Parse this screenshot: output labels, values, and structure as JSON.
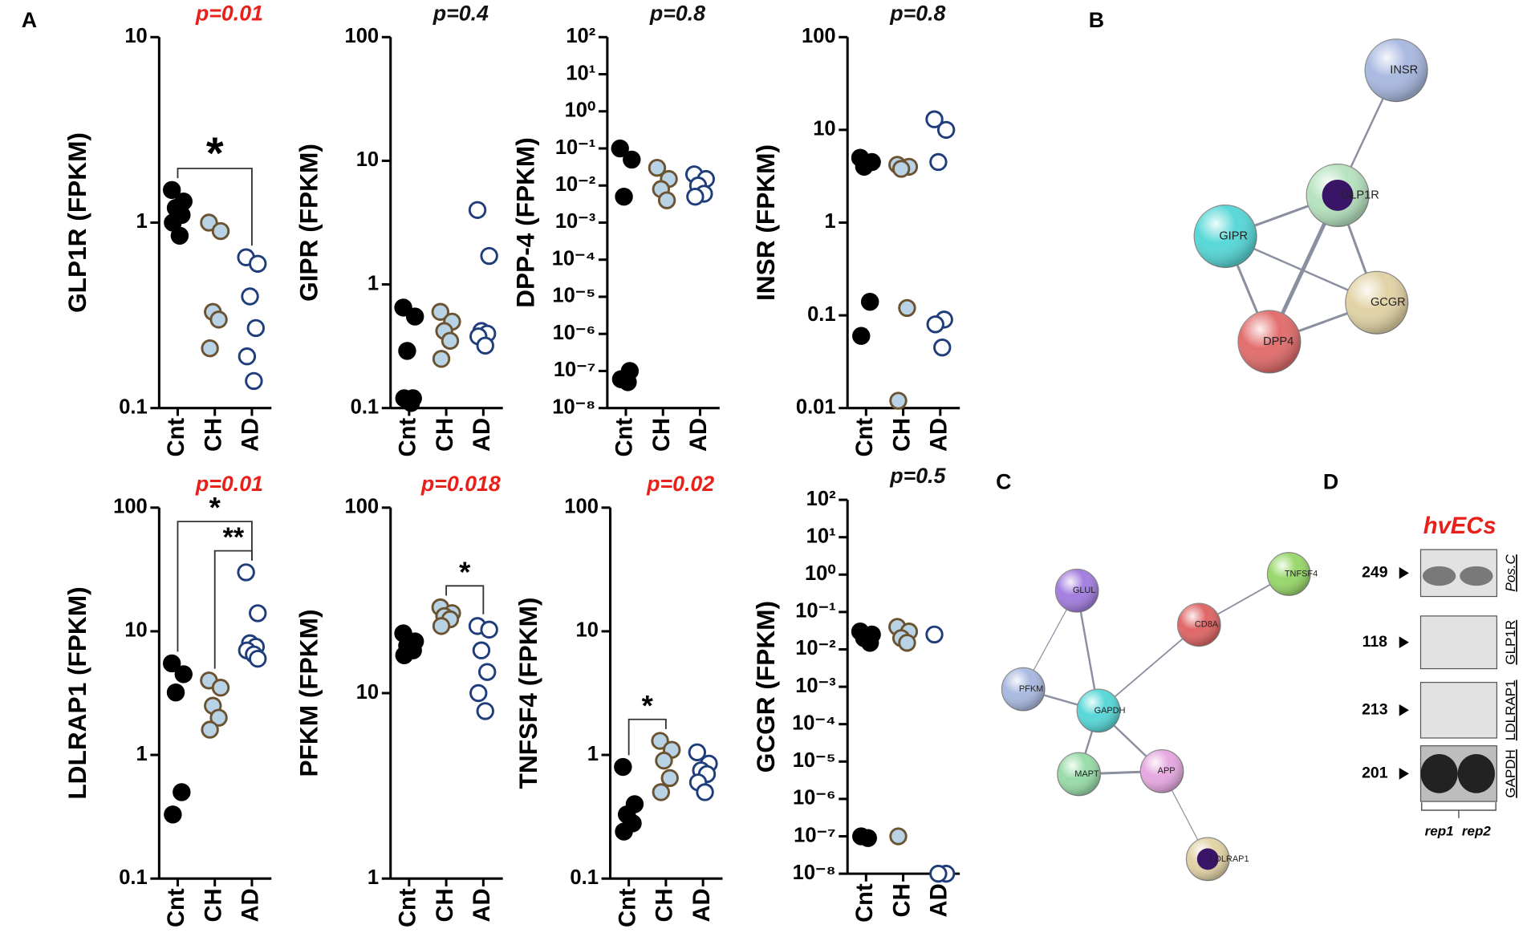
{
  "panel_letters": [
    "A",
    "B",
    "C",
    "D"
  ],
  "chart_data": [
    {
      "type": "scatter",
      "ylabel": "GLP1R (FPKM)",
      "annotation": "p=0.01",
      "annotation_color": "#e8201a",
      "categories": [
        "Cnt",
        "CH",
        "AD"
      ],
      "log_scale": true,
      "ylim": [
        0.1,
        10
      ],
      "yticks": [
        0.1,
        1,
        10
      ],
      "values": [
        [
          1.5,
          1.3,
          1.2,
          1.1,
          1.0,
          0.85
        ],
        [
          1.0,
          0.9,
          0.33,
          0.3,
          0.21
        ],
        [
          0.65,
          0.6,
          0.4,
          0.27,
          0.19,
          0.14
        ]
      ],
      "marker_fill": [
        "#000000",
        "#b9d3e6",
        "#ffffff"
      ],
      "marker_edge": [
        "#000000",
        "#6b5332",
        "#1f3d7a"
      ],
      "brackets": [
        {
          "label": "*",
          "from": 0,
          "to": 2
        }
      ]
    },
    {
      "type": "scatter",
      "ylabel": "GIPR (FPKM)",
      "annotation": "p=0.4",
      "annotation_color": "#111111",
      "categories": [
        "Cnt",
        "CH",
        "AD"
      ],
      "log_scale": true,
      "ylim": [
        0.1,
        100
      ],
      "yticks": [
        0.1,
        1,
        10,
        100
      ],
      "values": [
        [
          0.65,
          0.55,
          0.29,
          0.12,
          0.12,
          0.11
        ],
        [
          0.6,
          0.5,
          0.42,
          0.35,
          0.25
        ],
        [
          4,
          1.7,
          0.42,
          0.4,
          0.38,
          0.32
        ]
      ],
      "marker_fill": [
        "#000000",
        "#b9d3e6",
        "#ffffff"
      ],
      "marker_edge": [
        "#000000",
        "#6b5332",
        "#1f3d7a"
      ],
      "brackets": []
    },
    {
      "type": "scatter",
      "ylabel": "DPP-4 (FPKM)",
      "annotation": "p=0.8",
      "annotation_color": "#111111",
      "categories": [
        "Cnt",
        "CH",
        "AD"
      ],
      "log_scale": true,
      "ylim": [
        1e-08,
        100
      ],
      "yticks": [
        {
          "value": 100,
          "label": "10²"
        },
        {
          "value": 10,
          "label": "10¹"
        },
        {
          "value": 1,
          "label": "10⁰"
        },
        {
          "value": 0.1,
          "label": "10⁻¹"
        },
        {
          "value": 0.01,
          "label": "10⁻²"
        },
        {
          "value": 0.001,
          "label": "10⁻³"
        },
        {
          "value": 0.0001,
          "label": "10⁻⁴"
        },
        {
          "value": 1e-05,
          "label": "10⁻⁵"
        },
        {
          "value": 1e-06,
          "label": "10⁻⁶"
        },
        {
          "value": 1e-07,
          "label": "10⁻⁷"
        },
        {
          "value": 1e-08,
          "label": "10⁻⁸"
        }
      ],
      "values": [
        [
          0.1,
          0.05,
          0.005,
          1e-07,
          6e-08,
          5e-08
        ],
        [
          0.03,
          0.015,
          0.008,
          0.004
        ],
        [
          0.02,
          0.015,
          0.01,
          0.006,
          0.005
        ]
      ],
      "marker_fill": [
        "#000000",
        "#b9d3e6",
        "#ffffff"
      ],
      "marker_edge": [
        "#000000",
        "#6b5332",
        "#1f3d7a"
      ],
      "brackets": []
    },
    {
      "type": "scatter",
      "ylabel": "INSR (FPKM)",
      "annotation": "p=0.8",
      "annotation_color": "#111111",
      "categories": [
        "Cnt",
        "CH",
        "AD"
      ],
      "log_scale": true,
      "ylim": [
        0.01,
        100
      ],
      "yticks": [
        0.01,
        0.1,
        1,
        10,
        100
      ],
      "values": [
        [
          5,
          4.5,
          4,
          0.14,
          0.06
        ],
        [
          4.2,
          4,
          3.8,
          0.12,
          0.012
        ],
        [
          13,
          10,
          4.5,
          0.09,
          0.08,
          0.045
        ]
      ],
      "marker_fill": [
        "#000000",
        "#b9d3e6",
        "#ffffff"
      ],
      "marker_edge": [
        "#000000",
        "#6b5332",
        "#1f3d7a"
      ],
      "brackets": []
    },
    {
      "type": "scatter",
      "ylabel": "LDLRAP1 (FPKM)",
      "annotation": "p=0.01",
      "annotation_color": "#e8201a",
      "categories": [
        "Cnt",
        "CH",
        "AD"
      ],
      "log_scale": true,
      "ylim": [
        0.1,
        100
      ],
      "yticks": [
        0.1,
        1,
        10,
        100
      ],
      "values": [
        [
          5.5,
          4.5,
          3.2,
          0.5,
          0.33
        ],
        [
          4,
          3.5,
          2.5,
          2,
          1.6
        ],
        [
          30,
          14,
          8,
          7.5,
          7,
          6.5,
          6
        ]
      ],
      "marker_fill": [
        "#000000",
        "#b9d3e6",
        "#ffffff"
      ],
      "marker_edge": [
        "#000000",
        "#6b5332",
        "#1f3d7a"
      ],
      "brackets": [
        {
          "label": "*",
          "from": 0,
          "to": 2
        },
        {
          "label": "**",
          "from": 1,
          "to": 2
        }
      ]
    },
    {
      "type": "scatter",
      "ylabel": "PFKM (FPKM)",
      "annotation": "p=0.018",
      "annotation_color": "#e8201a",
      "categories": [
        "Cnt",
        "CH",
        "AD"
      ],
      "log_scale": true,
      "ylim": [
        1,
        100
      ],
      "yticks": [
        1,
        10,
        100
      ],
      "values": [
        [
          21,
          19,
          18,
          17,
          16
        ],
        [
          29,
          27,
          26,
          25,
          23
        ],
        [
          23,
          22,
          17,
          13,
          10,
          8
        ]
      ],
      "marker_fill": [
        "#000000",
        "#b9d3e6",
        "#ffffff"
      ],
      "marker_edge": [
        "#000000",
        "#6b5332",
        "#1f3d7a"
      ],
      "brackets": [
        {
          "label": "*",
          "from": 1,
          "to": 2
        }
      ]
    },
    {
      "type": "scatter",
      "ylabel": "TNFSF4 (FPKM)",
      "annotation": "p=0.02",
      "annotation_color": "#e8201a",
      "categories": [
        "Cnt",
        "CH",
        "AD"
      ],
      "log_scale": true,
      "ylim": [
        0.1,
        100
      ],
      "yticks": [
        0.1,
        1,
        10,
        100
      ],
      "values": [
        [
          0.8,
          0.4,
          0.33,
          0.28,
          0.24
        ],
        [
          1.3,
          1.1,
          0.9,
          0.65,
          0.5
        ],
        [
          1.05,
          0.85,
          0.75,
          0.7,
          0.6,
          0.5
        ]
      ],
      "marker_fill": [
        "#000000",
        "#b9d3e6",
        "#ffffff"
      ],
      "marker_edge": [
        "#000000",
        "#6b5332",
        "#1f3d7a"
      ],
      "brackets": [
        {
          "label": "*",
          "from": 0,
          "to": 1
        }
      ]
    },
    {
      "type": "scatter",
      "ylabel": "GCGR (FPKM)",
      "annotation": "p=0.5",
      "annotation_color": "#111111",
      "categories": [
        "Cnt",
        "CH",
        "AD"
      ],
      "log_scale": true,
      "ylim": [
        1e-08,
        100
      ],
      "yticks": [
        {
          "value": 100,
          "label": "10²"
        },
        {
          "value": 10,
          "label": "10¹"
        },
        {
          "value": 1,
          "label": "10⁰"
        },
        {
          "value": 0.1,
          "label": "10⁻¹"
        },
        {
          "value": 0.01,
          "label": "10⁻²"
        },
        {
          "value": 0.001,
          "label": "10⁻³"
        },
        {
          "value": 0.0001,
          "label": "10⁻⁴"
        },
        {
          "value": 1e-05,
          "label": "10⁻⁵"
        },
        {
          "value": 1e-06,
          "label": "10⁻⁶"
        },
        {
          "value": 1e-07,
          "label": "10⁻⁷"
        },
        {
          "value": 1e-08,
          "label": "10⁻⁸"
        }
      ],
      "values": [
        [
          0.03,
          0.025,
          0.02,
          0.015,
          1e-07,
          9e-08
        ],
        [
          0.04,
          0.03,
          0.02,
          0.015,
          1e-07
        ],
        [
          0.025,
          1e-08,
          1e-08
        ]
      ],
      "marker_fill": [
        "#000000",
        "#b9d3e6",
        "#ffffff"
      ],
      "marker_edge": [
        "#000000",
        "#6b5332",
        "#1f3d7a"
      ],
      "brackets": []
    }
  ],
  "network_b": {
    "nodes": [
      {
        "label": "INSR",
        "color": "#a9b9e0"
      },
      {
        "label": "GLP1R",
        "color": "#b7e3c0"
      },
      {
        "label": "GIPR",
        "color": "#58d8d8"
      },
      {
        "label": "GCGR",
        "color": "#e2d3a6"
      },
      {
        "label": "DPP4",
        "color": "#e36d6d"
      }
    ]
  },
  "network_c": {
    "nodes": [
      {
        "label": "GLUL",
        "color": "#a37ee0"
      },
      {
        "label": "TNFSF4",
        "color": "#98d86a"
      },
      {
        "label": "CD8A",
        "color": "#e06666"
      },
      {
        "label": "PFKM",
        "color": "#a9b9e0"
      },
      {
        "label": "GAPDH",
        "color": "#58d8d8"
      },
      {
        "label": "MAPT",
        "color": "#98dca8"
      },
      {
        "label": "APP",
        "color": "#e6a8e0"
      },
      {
        "label": "LDLRAP1",
        "color": "#e2d3a6"
      }
    ]
  },
  "blot": {
    "title": "hvECs",
    "rows": [
      {
        "size": "249",
        "label": "Pos.C"
      },
      {
        "size": "118",
        "label": "GLP1R"
      },
      {
        "size": "213",
        "label": "LDLRAP1"
      },
      {
        "size": "201",
        "label": "GAPDH"
      }
    ],
    "lanes": [
      "rep1",
      "rep2"
    ]
  }
}
